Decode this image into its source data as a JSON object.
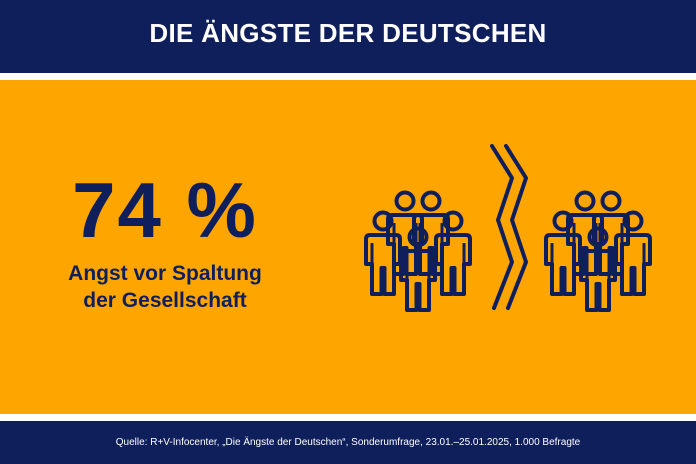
{
  "header": {
    "title": "DIE ÄNGSTE DER DEUTSCHEN"
  },
  "stat": {
    "value": "74 %",
    "label_line1": "Angst vor Spaltung",
    "label_line2": "der Gesellschaft"
  },
  "illustration": {
    "left_group_icon": "people-group-icon",
    "divider_icon": "crack-divider-icon",
    "right_group_icon": "people-group-icon"
  },
  "footer": {
    "source": "Quelle: R+V-Infocenter, „Die Ängste der Deutschen“, Sonderumfrage, 23.01.–25.01.2025, 1.000 Befragte"
  },
  "colors": {
    "navy": "#0f1f5c",
    "orange": "#ffa500",
    "white": "#ffffff"
  }
}
